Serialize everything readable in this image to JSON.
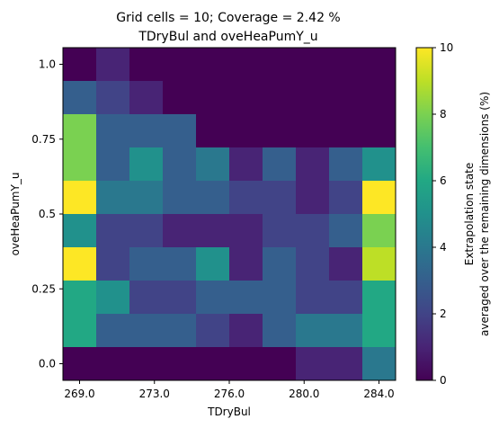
{
  "chart_data": {
    "type": "heatmap",
    "title_line1": "Grid cells = 10; Coverage = 2.42 %",
    "title_line2": "TDryBul and oveHeaPumY_u",
    "xlabel": "TDryBul",
    "ylabel": "oveHeaPumY_u",
    "xticks": [
      "269.0",
      "273.0",
      "276.0",
      "280.0",
      "284.0"
    ],
    "yticks": [
      "0.0",
      "0.25",
      "0.5",
      "0.75",
      "1.0"
    ],
    "colorbar_label_line1": "Extrapolation state",
    "colorbar_label_line2": "averaged over the remaining dimensions (%)",
    "colorbar_ticks": [
      "0",
      "2",
      "4",
      "6",
      "8",
      "10"
    ],
    "vmin": 0,
    "vmax": 10,
    "colormap": "viridis",
    "n_x": 10,
    "n_y": 10,
    "values_top_to_bottom": [
      [
        0.0,
        1.0,
        0.0,
        0.0,
        0.0,
        0.0,
        0.0,
        0.0,
        0.0,
        0.0
      ],
      [
        3.0,
        2.0,
        1.0,
        0.0,
        0.0,
        0.0,
        0.0,
        0.0,
        0.0,
        0.0
      ],
      [
        8.0,
        3.0,
        3.0,
        3.0,
        0.0,
        0.0,
        0.0,
        0.0,
        0.0,
        0.0
      ],
      [
        8.0,
        3.0,
        5.0,
        3.0,
        4.0,
        1.0,
        3.0,
        1.0,
        3.0,
        5.0
      ],
      [
        10.0,
        4.0,
        4.0,
        3.0,
        3.0,
        2.0,
        2.0,
        1.0,
        2.0,
        10.0
      ],
      [
        5.0,
        2.0,
        2.0,
        1.0,
        1.0,
        1.0,
        2.0,
        2.0,
        3.0,
        8.0
      ],
      [
        10.0,
        2.0,
        3.0,
        3.0,
        5.0,
        1.0,
        3.0,
        2.0,
        1.0,
        9.0
      ],
      [
        6.0,
        5.0,
        2.0,
        2.0,
        3.0,
        3.0,
        3.0,
        2.0,
        2.0,
        6.0
      ],
      [
        6.0,
        3.0,
        3.0,
        3.0,
        2.0,
        1.0,
        3.0,
        4.0,
        4.0,
        6.0
      ],
      [
        0.0,
        0.0,
        0.0,
        0.0,
        0.0,
        0.0,
        0.0,
        1.0,
        1.0,
        4.0
      ]
    ]
  }
}
